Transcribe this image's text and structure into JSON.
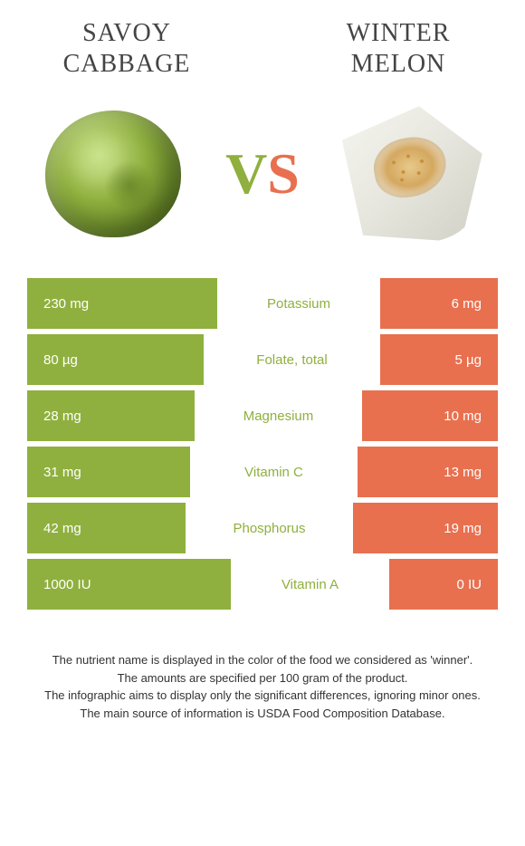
{
  "left_food": {
    "name": "SAVOY CABBAGE",
    "color": "#8fb03e"
  },
  "right_food": {
    "name": "WINTER MELON",
    "color": "#e8704f"
  },
  "vs_text": {
    "v": "V",
    "s": "S"
  },
  "bar_total_width": 520,
  "label_min_width": 140,
  "rows": [
    {
      "label": "Potassium",
      "left_value": "230 mg",
      "right_value": "6 mg",
      "winner": "left",
      "left_w": 210,
      "right_w": 130
    },
    {
      "label": "Folate, total",
      "left_value": "80 µg",
      "right_value": "5 µg",
      "winner": "left",
      "left_w": 195,
      "right_w": 130
    },
    {
      "label": "Magnesium",
      "left_value": "28 mg",
      "right_value": "10 mg",
      "winner": "left",
      "left_w": 185,
      "right_w": 150
    },
    {
      "label": "Vitamin C",
      "left_value": "31 mg",
      "right_value": "13 mg",
      "winner": "left",
      "left_w": 180,
      "right_w": 155
    },
    {
      "label": "Phosphorus",
      "left_value": "42 mg",
      "right_value": "19 mg",
      "winner": "left",
      "left_w": 175,
      "right_w": 160
    },
    {
      "label": "Vitamin A",
      "left_value": "1000 IU",
      "right_value": "0 IU",
      "winner": "left",
      "left_w": 225,
      "right_w": 120
    }
  ],
  "footnotes": [
    "The nutrient name is displayed in the color of the food we considered as 'winner'.",
    "The amounts are specified per 100 gram of the product.",
    "The infographic aims to display only the significant differences, ignoring minor ones.",
    "The main source of information is USDA Food Composition Database."
  ]
}
